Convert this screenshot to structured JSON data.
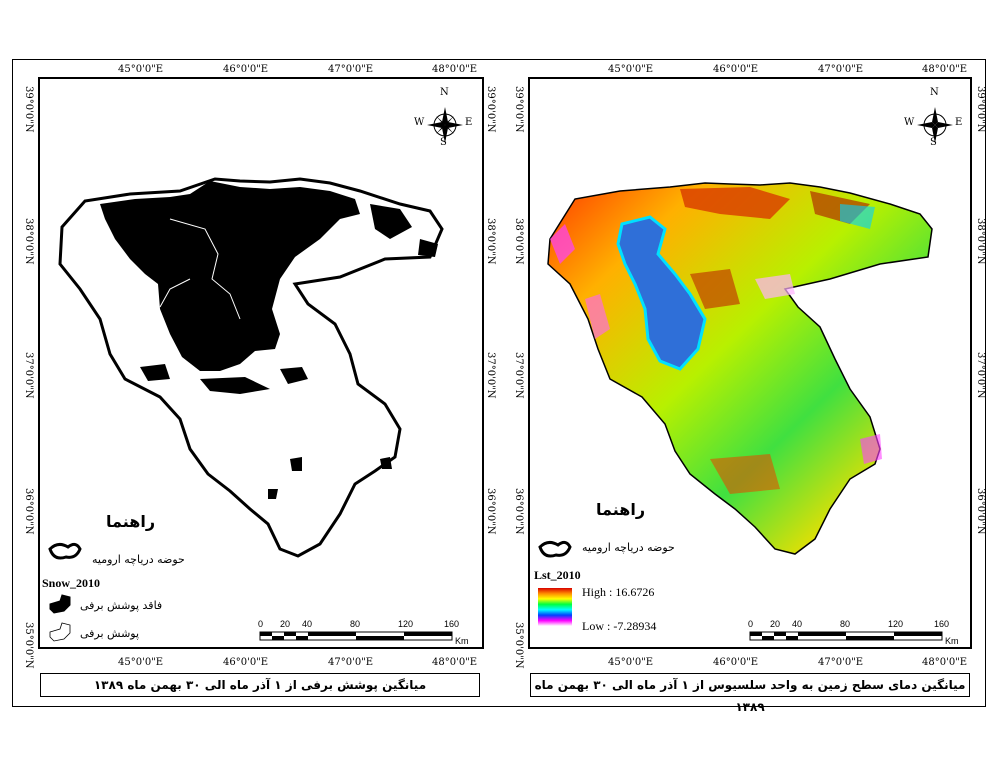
{
  "left_map": {
    "lon_labels": [
      "45°0'0\"E",
      "46°0'0\"E",
      "47°0'0\"E",
      "48°0'0\"E"
    ],
    "lat_labels": [
      "39°0'0\"N",
      "38°0'0\"N",
      "37°0'0\"N",
      "36°0'0\"N",
      "35°0'0\"N"
    ],
    "lat_labels_right": [
      "39°0'0\"N",
      "38°0'0\"N",
      "37°0'0\"N",
      "36°0'0\"N"
    ],
    "legend_title": "راهنما",
    "basin_label": "حوضه درياچه اروميه",
    "layer_name": "Snow_2010",
    "class_1": "فاقد پوشش برفى",
    "class_2": "پوشش برفى",
    "caption": "ميانگين پوشش برفى از ۱ آذر ماه الى ۳۰ بهمن ماه ۱۳۸۹"
  },
  "right_map": {
    "lon_labels": [
      "45°0'0\"E",
      "46°0'0\"E",
      "47°0'0\"E",
      "48°0'0\"E"
    ],
    "lat_labels": [
      "39°0'0\"N",
      "38°0'0\"N",
      "37°0'0\"N",
      "36°0'0\"N",
      "35°0'0\"N"
    ],
    "lat_labels_right": [
      "39°0'0\"N",
      "38°0'0\"N",
      "37°0'0\"N",
      "36°0'0\"N"
    ],
    "legend_title": "راهنما",
    "basin_label": "حوضه درياچه اروميه",
    "layer_name": "Lst_2010",
    "high": "High : 16.6726",
    "low": "Low : -7.28934",
    "caption": "ميانگين دماى سطح زمين به واحد سلسيوس از ۱ آذر ماه الى ۳۰ بهمن ماه ۱۳۸۹"
  },
  "scale": {
    "ticks": [
      "0",
      "20",
      "40",
      "80",
      "120",
      "160"
    ],
    "unit": "Km"
  },
  "north_arrow": {
    "n": "N",
    "s": "S",
    "e": "E",
    "w": "W"
  },
  "colors": {
    "snow": "#000000",
    "no_snow": "#ffffff",
    "lake": "#2f6fd8"
  }
}
